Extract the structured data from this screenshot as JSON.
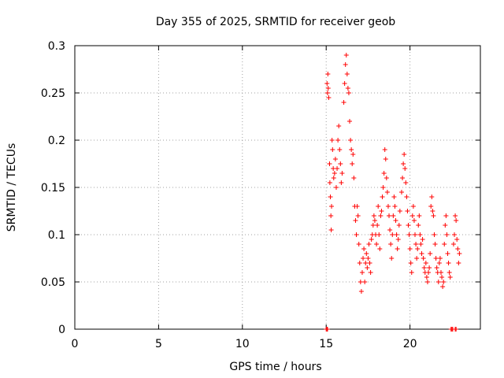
{
  "chart_data": {
    "type": "scatter",
    "title": "Day 355 of 2025, SRMTID for receiver geob",
    "xlabel": "GPS time / hours",
    "ylabel": "SRMTID / TECUs",
    "xlim": [
      0,
      24.2
    ],
    "ylim": [
      0,
      0.3
    ],
    "grid": true,
    "marker": "+",
    "marker_color": "#ff0000",
    "x_ticks": [
      0,
      5,
      10,
      15,
      20
    ],
    "y_ticks": [
      0,
      0.05,
      0.1,
      0.15,
      0.2,
      0.25,
      0.3
    ],
    "x_tick_labels": [
      "0",
      "5",
      "10",
      "15",
      "20"
    ],
    "y_tick_labels": [
      "0",
      "0.05",
      "0.1",
      "0.15",
      "0.2",
      "0.25",
      "0.3"
    ],
    "series": [
      {
        "name": "SRMTID",
        "points": [
          [
            15.0,
            0.0
          ],
          [
            15.05,
            0.0
          ],
          [
            15.08,
            0.0
          ],
          [
            15.05,
            0.26
          ],
          [
            15.08,
            0.25
          ],
          [
            15.1,
            0.27
          ],
          [
            15.12,
            0.255
          ],
          [
            15.15,
            0.245
          ],
          [
            15.2,
            0.175
          ],
          [
            15.22,
            0.155
          ],
          [
            15.25,
            0.14
          ],
          [
            15.28,
            0.12
          ],
          [
            15.3,
            0.105
          ],
          [
            15.32,
            0.13
          ],
          [
            15.35,
            0.2
          ],
          [
            15.38,
            0.19
          ],
          [
            15.42,
            0.17
          ],
          [
            15.45,
            0.16
          ],
          [
            15.5,
            0.165
          ],
          [
            15.55,
            0.18
          ],
          [
            15.6,
            0.15
          ],
          [
            15.65,
            0.17
          ],
          [
            15.7,
            0.2
          ],
          [
            15.75,
            0.215
          ],
          [
            15.8,
            0.19
          ],
          [
            15.85,
            0.175
          ],
          [
            15.9,
            0.155
          ],
          [
            15.95,
            0.165
          ],
          [
            16.05,
            0.24
          ],
          [
            16.1,
            0.26
          ],
          [
            16.15,
            0.28
          ],
          [
            16.2,
            0.29
          ],
          [
            16.25,
            0.27
          ],
          [
            16.3,
            0.255
          ],
          [
            16.35,
            0.25
          ],
          [
            16.4,
            0.22
          ],
          [
            16.45,
            0.2
          ],
          [
            16.5,
            0.19
          ],
          [
            16.55,
            0.175
          ],
          [
            16.6,
            0.185
          ],
          [
            16.65,
            0.16
          ],
          [
            16.7,
            0.13
          ],
          [
            16.75,
            0.115
          ],
          [
            16.8,
            0.1
          ],
          [
            16.85,
            0.13
          ],
          [
            16.9,
            0.12
          ],
          [
            16.95,
            0.09
          ],
          [
            17.0,
            0.07
          ],
          [
            17.05,
            0.05
          ],
          [
            17.1,
            0.04
          ],
          [
            17.15,
            0.06
          ],
          [
            17.2,
            0.075
          ],
          [
            17.25,
            0.085
          ],
          [
            17.3,
            0.05
          ],
          [
            17.35,
            0.07
          ],
          [
            17.4,
            0.08
          ],
          [
            17.45,
            0.065
          ],
          [
            17.5,
            0.075
          ],
          [
            17.55,
            0.09
          ],
          [
            17.6,
            0.07
          ],
          [
            17.65,
            0.06
          ],
          [
            17.7,
            0.095
          ],
          [
            17.75,
            0.1
          ],
          [
            17.8,
            0.11
          ],
          [
            17.85,
            0.12
          ],
          [
            17.9,
            0.115
          ],
          [
            17.95,
            0.1
          ],
          [
            18.0,
            0.09
          ],
          [
            18.05,
            0.11
          ],
          [
            18.1,
            0.13
          ],
          [
            18.15,
            0.1
          ],
          [
            18.2,
            0.085
          ],
          [
            18.25,
            0.12
          ],
          [
            18.3,
            0.125
          ],
          [
            18.35,
            0.14
          ],
          [
            18.4,
            0.15
          ],
          [
            18.45,
            0.165
          ],
          [
            18.5,
            0.19
          ],
          [
            18.55,
            0.18
          ],
          [
            18.6,
            0.16
          ],
          [
            18.65,
            0.145
          ],
          [
            18.7,
            0.13
          ],
          [
            18.75,
            0.12
          ],
          [
            18.8,
            0.105
          ],
          [
            18.85,
            0.09
          ],
          [
            18.9,
            0.075
          ],
          [
            18.95,
            0.1
          ],
          [
            19.0,
            0.12
          ],
          [
            19.05,
            0.14
          ],
          [
            19.1,
            0.13
          ],
          [
            19.15,
            0.115
          ],
          [
            19.2,
            0.1
          ],
          [
            19.25,
            0.085
          ],
          [
            19.3,
            0.095
          ],
          [
            19.35,
            0.11
          ],
          [
            19.4,
            0.125
          ],
          [
            19.5,
            0.145
          ],
          [
            19.55,
            0.16
          ],
          [
            19.6,
            0.175
          ],
          [
            19.65,
            0.185
          ],
          [
            19.7,
            0.17
          ],
          [
            19.75,
            0.155
          ],
          [
            19.8,
            0.14
          ],
          [
            19.85,
            0.125
          ],
          [
            19.9,
            0.11
          ],
          [
            19.95,
            0.1
          ],
          [
            20.0,
            0.085
          ],
          [
            20.05,
            0.07
          ],
          [
            20.1,
            0.06
          ],
          [
            20.15,
            0.12
          ],
          [
            20.2,
            0.13
          ],
          [
            20.25,
            0.115
          ],
          [
            20.3,
            0.1
          ],
          [
            20.35,
            0.09
          ],
          [
            20.4,
            0.075
          ],
          [
            20.45,
            0.085
          ],
          [
            20.5,
            0.11
          ],
          [
            20.55,
            0.12
          ],
          [
            20.6,
            0.1
          ],
          [
            20.65,
            0.09
          ],
          [
            20.7,
            0.08
          ],
          [
            20.75,
            0.095
          ],
          [
            20.8,
            0.075
          ],
          [
            20.85,
            0.065
          ],
          [
            20.9,
            0.06
          ],
          [
            20.95,
            0.07
          ],
          [
            21.0,
            0.055
          ],
          [
            21.05,
            0.05
          ],
          [
            21.1,
            0.06
          ],
          [
            21.15,
            0.065
          ],
          [
            21.2,
            0.08
          ],
          [
            21.25,
            0.13
          ],
          [
            21.3,
            0.14
          ],
          [
            21.35,
            0.125
          ],
          [
            21.4,
            0.12
          ],
          [
            21.45,
            0.1
          ],
          [
            21.5,
            0.09
          ],
          [
            21.55,
            0.075
          ],
          [
            21.6,
            0.065
          ],
          [
            21.65,
            0.06
          ],
          [
            21.7,
            0.05
          ],
          [
            21.75,
            0.07
          ],
          [
            21.8,
            0.075
          ],
          [
            21.85,
            0.06
          ],
          [
            21.9,
            0.055
          ],
          [
            21.95,
            0.045
          ],
          [
            22.0,
            0.05
          ],
          [
            22.05,
            0.09
          ],
          [
            22.1,
            0.11
          ],
          [
            22.15,
            0.12
          ],
          [
            22.2,
            0.1
          ],
          [
            22.25,
            0.08
          ],
          [
            22.3,
            0.07
          ],
          [
            22.35,
            0.06
          ],
          [
            22.4,
            0.055
          ],
          [
            22.45,
            0.0
          ],
          [
            22.5,
            0.0
          ],
          [
            22.55,
            0.0
          ],
          [
            22.7,
            0.0
          ],
          [
            22.75,
            0.0
          ],
          [
            22.6,
            0.09
          ],
          [
            22.65,
            0.1
          ],
          [
            22.7,
            0.12
          ],
          [
            22.75,
            0.115
          ],
          [
            22.8,
            0.095
          ],
          [
            22.85,
            0.085
          ],
          [
            22.9,
            0.07
          ],
          [
            22.95,
            0.08
          ]
        ]
      }
    ]
  }
}
